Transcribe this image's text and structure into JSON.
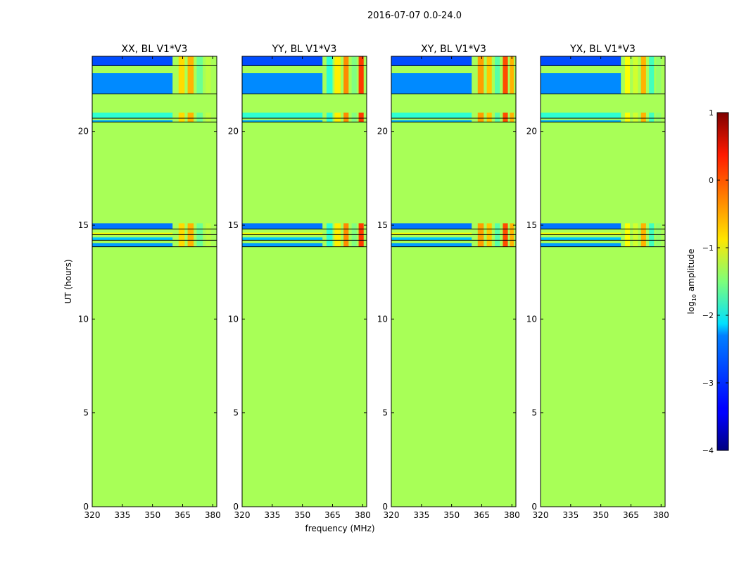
{
  "suptitle": "2016-07-07 0.0-24.0",
  "shared": {
    "xlabel": "frequency (MHz)",
    "ylabel": "UT (hours)",
    "xlim": [
      320,
      382
    ],
    "ylim": [
      0,
      24
    ],
    "xticks": [
      320,
      335,
      350,
      365,
      380
    ],
    "yticks": [
      0,
      5,
      10,
      15,
      20
    ]
  },
  "colorbar": {
    "label_prefix": "log",
    "label_sub": "10",
    "label_suffix": " amplitude",
    "range": [
      -4,
      1
    ],
    "ticks": [
      1,
      0,
      -1,
      -2,
      -3,
      -4
    ],
    "tick_labels": [
      "1",
      "0",
      "−1",
      "−2",
      "−3",
      "−4"
    ],
    "colormap": "jet"
  },
  "chart_data": [
    {
      "type": "heatmap",
      "title": "XX, BL V1*V3",
      "background_log_amplitude": -1.3,
      "row_bands": [
        {
          "y0": 13.85,
          "y1": 14.05,
          "log_amplitude": -2.6
        },
        {
          "y0": 14.2,
          "y1": 14.35,
          "log_amplitude": -2.4
        },
        {
          "y0": 14.5,
          "y1": 14.6,
          "log_amplitude": -0.9
        },
        {
          "y0": 14.8,
          "y1": 15.1,
          "log_amplitude": -2.8
        },
        {
          "y0": 20.5,
          "y1": 20.6,
          "log_amplitude": -2.5
        },
        {
          "y0": 20.7,
          "y1": 21.0,
          "log_amplitude": -1.9
        },
        {
          "y0": 22.0,
          "y1": 23.1,
          "log_amplitude": -2.7
        },
        {
          "y0": 23.5,
          "y1": 24.0,
          "log_amplitude": -3.0
        }
      ],
      "rfi_columns": [
        {
          "f0": 363,
          "f1": 366,
          "log_amplitude": -0.7
        },
        {
          "f0": 367.5,
          "f1": 370.5,
          "log_amplitude": -0.5
        },
        {
          "f0": 372,
          "f1": 375,
          "log_amplitude": -1.6
        },
        {
          "f0": 376.5,
          "f1": 379,
          "log_amplitude": -1.2
        }
      ]
    },
    {
      "type": "heatmap",
      "title": "YY, BL V1*V3",
      "background_log_amplitude": -1.3,
      "row_bands": [
        {
          "y0": 13.85,
          "y1": 14.05,
          "log_amplitude": -2.6
        },
        {
          "y0": 14.2,
          "y1": 14.35,
          "log_amplitude": -2.4
        },
        {
          "y0": 14.5,
          "y1": 14.6,
          "log_amplitude": -0.9
        },
        {
          "y0": 14.8,
          "y1": 15.1,
          "log_amplitude": -2.8
        },
        {
          "y0": 20.5,
          "y1": 20.6,
          "log_amplitude": -2.5
        },
        {
          "y0": 20.7,
          "y1": 21.0,
          "log_amplitude": -1.9
        },
        {
          "y0": 22.0,
          "y1": 23.1,
          "log_amplitude": -2.7
        },
        {
          "y0": 23.5,
          "y1": 24.0,
          "log_amplitude": -3.0
        }
      ],
      "rfi_columns": [
        {
          "f0": 362,
          "f1": 365,
          "log_amplitude": -1.9
        },
        {
          "f0": 366,
          "f1": 369,
          "log_amplitude": -0.8
        },
        {
          "f0": 370.5,
          "f1": 373,
          "log_amplitude": -0.3
        },
        {
          "f0": 374.5,
          "f1": 377,
          "log_amplitude": -1.5
        },
        {
          "f0": 378,
          "f1": 380.5,
          "log_amplitude": 0.1
        }
      ]
    },
    {
      "type": "heatmap",
      "title": "XY, BL V1*V3",
      "background_log_amplitude": -1.3,
      "row_bands": [
        {
          "y0": 13.85,
          "y1": 14.05,
          "log_amplitude": -2.6
        },
        {
          "y0": 14.2,
          "y1": 14.35,
          "log_amplitude": -2.4
        },
        {
          "y0": 14.5,
          "y1": 14.6,
          "log_amplitude": -0.9
        },
        {
          "y0": 14.8,
          "y1": 15.1,
          "log_amplitude": -2.8
        },
        {
          "y0": 20.5,
          "y1": 20.6,
          "log_amplitude": -2.5
        },
        {
          "y0": 20.7,
          "y1": 21.0,
          "log_amplitude": -1.9
        },
        {
          "y0": 22.0,
          "y1": 23.1,
          "log_amplitude": -2.7
        },
        {
          "y0": 23.5,
          "y1": 24.0,
          "log_amplitude": -3.0
        }
      ],
      "rfi_columns": [
        {
          "f0": 363,
          "f1": 366,
          "log_amplitude": -0.4
        },
        {
          "f0": 367.5,
          "f1": 370,
          "log_amplitude": -0.6
        },
        {
          "f0": 371.5,
          "f1": 374,
          "log_amplitude": -1.7
        },
        {
          "f0": 375.5,
          "f1": 378,
          "log_amplitude": 0.0
        },
        {
          "f0": 379,
          "f1": 381,
          "log_amplitude": -0.5
        }
      ]
    },
    {
      "type": "heatmap",
      "title": "YX, BL V1*V3",
      "background_log_amplitude": -1.3,
      "row_bands": [
        {
          "y0": 13.85,
          "y1": 14.05,
          "log_amplitude": -2.6
        },
        {
          "y0": 14.2,
          "y1": 14.35,
          "log_amplitude": -2.4
        },
        {
          "y0": 14.5,
          "y1": 14.6,
          "log_amplitude": -0.9
        },
        {
          "y0": 14.8,
          "y1": 15.1,
          "log_amplitude": -2.8
        },
        {
          "y0": 20.5,
          "y1": 20.6,
          "log_amplitude": -2.5
        },
        {
          "y0": 20.7,
          "y1": 21.0,
          "log_amplitude": -1.9
        },
        {
          "y0": 22.0,
          "y1": 23.1,
          "log_amplitude": -2.7
        },
        {
          "y0": 23.5,
          "y1": 24.0,
          "log_amplitude": -3.0
        }
      ],
      "rfi_columns": [
        {
          "f0": 362,
          "f1": 364.5,
          "log_amplitude": -0.9
        },
        {
          "f0": 366,
          "f1": 368.5,
          "log_amplitude": -1.1
        },
        {
          "f0": 370,
          "f1": 372.5,
          "log_amplitude": -0.5
        },
        {
          "f0": 374,
          "f1": 376.5,
          "log_amplitude": -1.8
        },
        {
          "f0": 377.5,
          "f1": 380,
          "log_amplitude": -1.4
        }
      ]
    }
  ]
}
